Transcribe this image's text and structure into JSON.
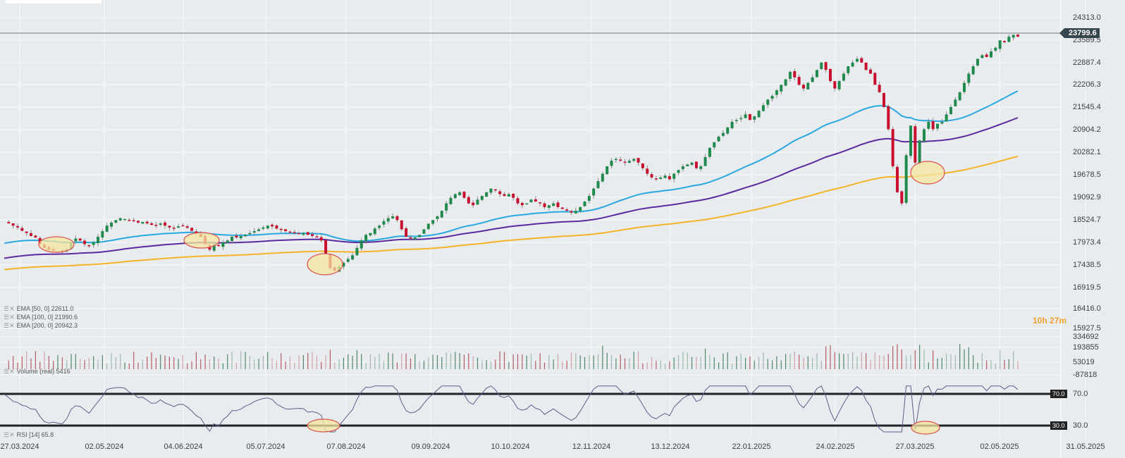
{
  "chart_data": {
    "type": "candlestick",
    "title": "",
    "last_price": "23799.6",
    "y_axis_labels": [
      "24313.0",
      "23589.5",
      "22887.4",
      "22206.3",
      "21545.4",
      "20904.2",
      "20282.1",
      "19678.5",
      "19092.9",
      "18524.7",
      "17973.4",
      "17438.5",
      "16919.5",
      "16416.0",
      "15927.5"
    ],
    "x_axis_labels": [
      "27.03.2024",
      "02.05.2024",
      "04.06.2024",
      "05.07.2024",
      "07.08.2024",
      "09.09.2024",
      "10.10.2024",
      "12.11.2024",
      "13.12.2024",
      "22.01.2025",
      "24.02.2025",
      "27.03.2025",
      "02.05.2025",
      "31.05.2025"
    ],
    "indicators": {
      "ema50": {
        "label": "EMA [50, 0] 22611.0",
        "color": "#29a8e0"
      },
      "ema100": {
        "label": "EMA [100, 0] 21990.6",
        "color": "#5b2a9e"
      },
      "ema200": {
        "label": "EMA [200, 0] 20942.3",
        "color": "#f5b32a"
      }
    },
    "volume": {
      "label": "Volume (real) 5416",
      "axis_labels": [
        "334692",
        "193855",
        "53019",
        "-87818"
      ]
    },
    "rsi": {
      "label": "RSI [14] 65.8",
      "levels": [
        "70.0",
        "30.0"
      ],
      "axis_labels": [
        "70.0",
        "30.0"
      ]
    },
    "close_path": [
      18800,
      18760,
      18700,
      18650,
      18560,
      18500,
      18420,
      18380,
      18200,
      18100,
      18050,
      18020,
      18000,
      17990,
      18060,
      18250,
      18350,
      18300,
      18200,
      18150,
      18250,
      18400,
      18550,
      18700,
      18780,
      18850,
      18900,
      18880,
      18850,
      18820,
      18780,
      18800,
      18760,
      18720,
      18700,
      18760,
      18700,
      18650,
      18620,
      18680,
      18700,
      18640,
      18560,
      18480,
      18400,
      18200,
      18050,
      18200,
      18150,
      18250,
      18300,
      18400,
      18380,
      18420,
      18450,
      18500,
      18550,
      18600,
      18650,
      18700,
      18680,
      18620,
      18600,
      18550,
      18520,
      18500,
      18480,
      18500,
      18450,
      18420,
      18400,
      18300,
      17950,
      17550,
      17480,
      17600,
      17700,
      17800,
      17900,
      18100,
      18300,
      18450,
      18500,
      18620,
      18700,
      18820,
      18900,
      18950,
      18850,
      18600,
      18400,
      18350,
      18380,
      18450,
      18600,
      18750,
      18850,
      18950,
      19100,
      19300,
      19450,
      19550,
      19600,
      19450,
      19300,
      19250,
      19400,
      19500,
      19600,
      19700,
      19650,
      19550,
      19500,
      19550,
      19450,
      19300,
      19250,
      19300,
      19400,
      19350,
      19300,
      19200,
      19250,
      19300,
      19200,
      19150,
      19100,
      19050,
      19100,
      19200,
      19350,
      19500,
      19700,
      19900,
      20100,
      20300,
      20450,
      20500,
      20450,
      20400,
      20450,
      20500,
      20400,
      20250,
      20100,
      20000,
      19950,
      20000,
      20050,
      19950,
      20100,
      20200,
      20300,
      20350,
      20400,
      20250,
      20300,
      20550,
      20800,
      20950,
      21100,
      21200,
      21350,
      21500,
      21550,
      21600,
      21700,
      21550,
      21650,
      21800,
      21950,
      22100,
      22200,
      22350,
      22500,
      22650,
      22850,
      22700,
      22500,
      22400,
      22550,
      22700,
      22900,
      23100,
      22900,
      22600,
      22400,
      22600,
      22800,
      23000,
      23100,
      23200,
      23100,
      22900,
      22800,
      22500,
      22300,
      21900,
      21300,
      20300,
      19600,
      19300,
      20600,
      21400,
      20400,
      21000,
      21300,
      21500,
      21300,
      21450,
      21500,
      21700,
      21900,
      22100,
      22300,
      22550,
      22800,
      23000,
      23200,
      23300,
      23250,
      23400,
      23500,
      23700,
      23650,
      23800,
      23850,
      23799
    ]
  },
  "annotations": {
    "timer": "10h 27m",
    "timer_hours": "10h",
    "timer_mins": "27m"
  }
}
